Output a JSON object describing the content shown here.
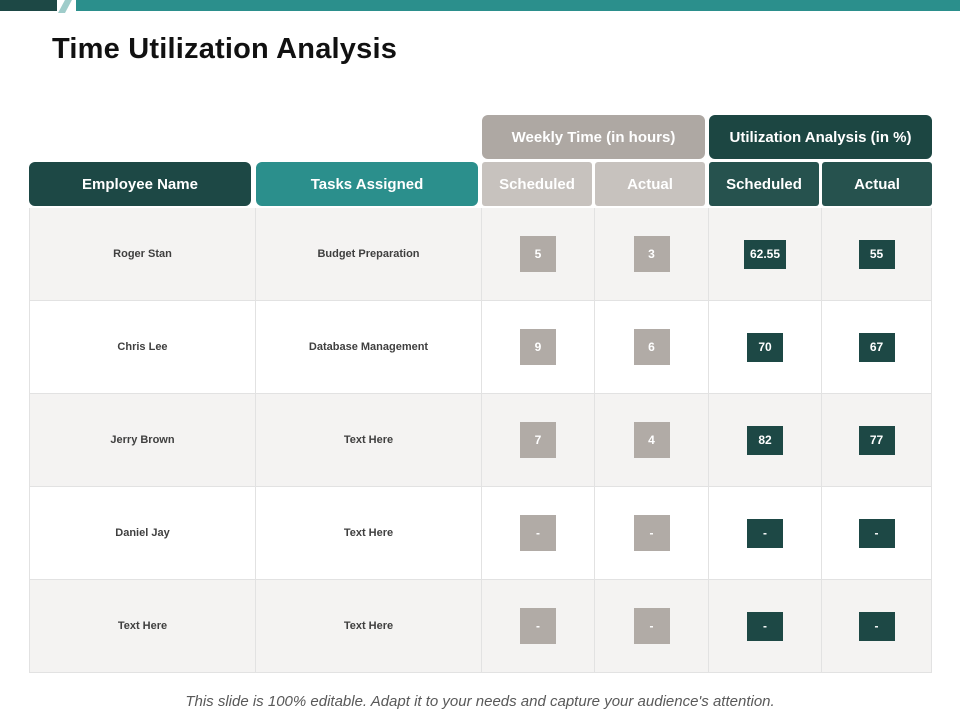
{
  "slide": {
    "title": "Time Utilization Analysis",
    "footer": "This slide is 100% editable.  Adapt it to your needs and capture your audience's attention."
  },
  "table": {
    "group_headers": {
      "weekly": "Weekly Time (in hours)",
      "utilization": "Utilization Analysis (in %)"
    },
    "columns": {
      "employee": "Employee Name",
      "tasks": "Tasks Assigned",
      "weekly_scheduled": "Scheduled",
      "weekly_actual": "Actual",
      "util_scheduled": "Scheduled",
      "util_actual": "Actual"
    },
    "rows": [
      {
        "name": "Roger Stan",
        "task": "Budget Preparation",
        "weekly_scheduled": "5",
        "weekly_actual": "3",
        "util_scheduled": "62.55",
        "util_actual": "55"
      },
      {
        "name": "Chris Lee",
        "task": "Database Management",
        "weekly_scheduled": "9",
        "weekly_actual": "6",
        "util_scheduled": "70",
        "util_actual": "67"
      },
      {
        "name": "Jerry Brown",
        "task": "Text Here",
        "weekly_scheduled": "7",
        "weekly_actual": "4",
        "util_scheduled": "82",
        "util_actual": "77"
      },
      {
        "name": "Daniel Jay",
        "task": "Text Here",
        "weekly_scheduled": "-",
        "weekly_actual": "-",
        "util_scheduled": "-",
        "util_actual": "-"
      },
      {
        "name": "Text Here",
        "task": "Text Here",
        "weekly_scheduled": "-",
        "weekly_actual": "-",
        "util_scheduled": "-",
        "util_actual": "-"
      }
    ]
  },
  "colors": {
    "teal_accent": "#2b8f8c",
    "dark_teal": "#1d4845",
    "warm_gray": "#aea8a3",
    "light_gray_subheader": "#c7c2be",
    "row_alt_background": "#f4f3f2"
  }
}
